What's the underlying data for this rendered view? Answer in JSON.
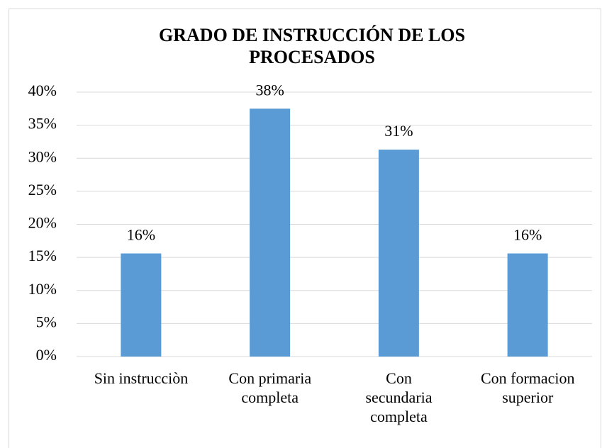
{
  "chart_data": {
    "type": "bar",
    "title": "GRADO DE INSTRUCCIÓN DE LOS PROCESADOS",
    "categories": [
      "Sin instrucciòn",
      "Con primaria\ncompleta",
      "Con\nsecundaria\ncompleta",
      "Con formacion\nsuperior"
    ],
    "values": [
      15.6,
      37.5,
      31.3,
      15.6
    ],
    "value_labels": [
      "16%",
      "38%",
      "31%",
      "16%"
    ],
    "color": "#5b9bd5",
    "ylim": [
      0,
      40
    ],
    "yticks": [
      {
        "value": 0,
        "label": "0%"
      },
      {
        "value": 5,
        "label": "5%"
      },
      {
        "value": 10,
        "label": "10%"
      },
      {
        "value": 15,
        "label": "15%"
      },
      {
        "value": 20,
        "label": "20%"
      },
      {
        "value": 25,
        "label": "25%"
      },
      {
        "value": 30,
        "label": "30%"
      },
      {
        "value": 35,
        "label": "35%"
      },
      {
        "value": 40,
        "label": "40%"
      }
    ],
    "grid": true
  }
}
